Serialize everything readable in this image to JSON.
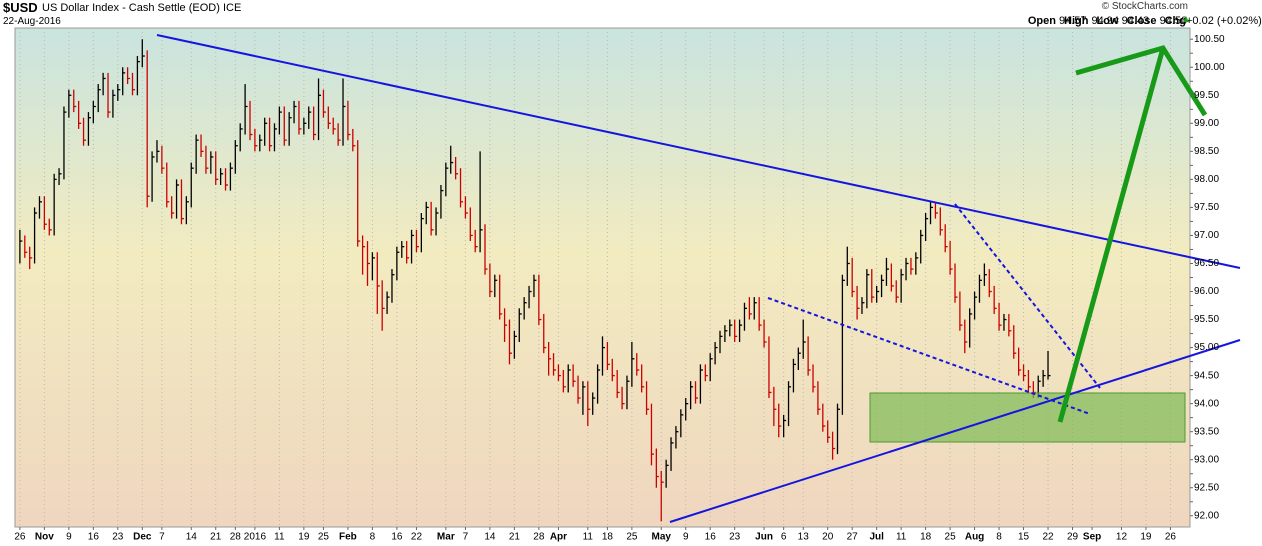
{
  "header": {
    "symbol": "$USD",
    "name": "US Dollar Index - Cash Settle (EOD)",
    "exchange": "ICE",
    "date": "22-Aug-2016",
    "copyright": "© StockCharts.com",
    "quote": [
      {
        "label": "Open",
        "value": "94.57"
      },
      {
        "label": "High",
        "value": "94.94"
      },
      {
        "label": "Low",
        "value": "94.43"
      },
      {
        "label": "Close",
        "value": "94.50"
      },
      {
        "label": "Chg",
        "value": "+0.02 (+0.02%)"
      }
    ]
  },
  "chart_data": {
    "type": "ohlc",
    "up_color": "#000000",
    "down_color": "#cc0000",
    "grid": true,
    "xlim": [
      -1,
      239
    ],
    "ylim": [
      91.8,
      100.7
    ],
    "xticks": [
      {
        "value": 0,
        "label": "26"
      },
      {
        "value": 5,
        "label": "Nov"
      },
      {
        "value": 10,
        "label": "9"
      },
      {
        "value": 15,
        "label": "16"
      },
      {
        "value": 20,
        "label": "23"
      },
      {
        "value": 25,
        "label": "Dec"
      },
      {
        "value": 29,
        "label": "7"
      },
      {
        "value": 35,
        "label": "14"
      },
      {
        "value": 40,
        "label": "21"
      },
      {
        "value": 44,
        "label": "28"
      },
      {
        "value": 48,
        "label": "2016"
      },
      {
        "value": 53,
        "label": "11"
      },
      {
        "value": 58,
        "label": "19"
      },
      {
        "value": 62,
        "label": "25"
      },
      {
        "value": 67,
        "label": "Feb"
      },
      {
        "value": 72,
        "label": "8"
      },
      {
        "value": 77,
        "label": "16"
      },
      {
        "value": 81,
        "label": "22"
      },
      {
        "value": 87,
        "label": "Mar"
      },
      {
        "value": 91,
        "label": "7"
      },
      {
        "value": 96,
        "label": "14"
      },
      {
        "value": 101,
        "label": "21"
      },
      {
        "value": 106,
        "label": "28"
      },
      {
        "value": 110,
        "label": "Apr"
      },
      {
        "value": 116,
        "label": "11"
      },
      {
        "value": 120,
        "label": "18"
      },
      {
        "value": 125,
        "label": "25"
      },
      {
        "value": 131,
        "label": "May"
      },
      {
        "value": 136,
        "label": "9"
      },
      {
        "value": 141,
        "label": "16"
      },
      {
        "value": 146,
        "label": "23"
      },
      {
        "value": 152,
        "label": "Jun"
      },
      {
        "value": 156,
        "label": "6"
      },
      {
        "value": 160,
        "label": "13"
      },
      {
        "value": 165,
        "label": "20"
      },
      {
        "value": 170,
        "label": "27"
      },
      {
        "value": 175,
        "label": "Jul"
      },
      {
        "value": 180,
        "label": "11"
      },
      {
        "value": 185,
        "label": "18"
      },
      {
        "value": 190,
        "label": "25"
      },
      {
        "value": 195,
        "label": "Aug"
      },
      {
        "value": 200,
        "label": "8"
      },
      {
        "value": 205,
        "label": "15"
      },
      {
        "value": 210,
        "label": "22"
      },
      {
        "value": 215,
        "label": "29"
      },
      {
        "value": 219,
        "label": "Sep"
      },
      {
        "value": 225,
        "label": "12"
      },
      {
        "value": 230,
        "label": "19"
      },
      {
        "value": 235,
        "label": "26"
      }
    ],
    "yticks": [
      {
        "value": 92,
        "label": "92.00"
      },
      92.25,
      {
        "value": 92.5,
        "label": "92.50"
      },
      92.75,
      {
        "value": 93,
        "label": "93.00"
      },
      93.25,
      {
        "value": 93.5,
        "label": "93.50"
      },
      93.75,
      {
        "value": 94,
        "label": "94.00"
      },
      94.25,
      {
        "value": 94.5,
        "label": "94.50"
      },
      94.75,
      {
        "value": 95,
        "label": "95.00"
      },
      95.25,
      {
        "value": 95.5,
        "label": "95.50"
      },
      95.75,
      {
        "value": 96,
        "label": "96.00"
      },
      96.25,
      {
        "value": 96.5,
        "label": "96.50"
      },
      96.75,
      {
        "value": 97,
        "label": "97.00"
      },
      97.25,
      {
        "value": 97.5,
        "label": "97.50"
      },
      97.75,
      {
        "value": 98,
        "label": "98.00"
      },
      98.25,
      {
        "value": 98.5,
        "label": "98.50"
      },
      98.75,
      {
        "value": 99,
        "label": "99.00"
      },
      99.25,
      {
        "value": 99.5,
        "label": "99.50"
      },
      99.75,
      {
        "value": 100,
        "label": "100.00"
      },
      100.25,
      {
        "value": 100.5,
        "label": "100.50"
      }
    ],
    "high": [
      97.1,
      97.0,
      96.8,
      97.5,
      97.7,
      97.7,
      97.3,
      98.1,
      98.2,
      99.3,
      99.6,
      99.6,
      99.4,
      99.1,
      99.2,
      99.4,
      99.7,
      99.9,
      99.9,
      99.6,
      99.7,
      100.0,
      100.0,
      99.9,
      100.2,
      100.5,
      100.3,
      98.5,
      98.7,
      98.6,
      98.3,
      97.7,
      98.0,
      98.0,
      97.7,
      98.3,
      98.8,
      98.8,
      98.6,
      98.5,
      98.5,
      98.2,
      98.2,
      98.3,
      98.7,
      99.0,
      99.7,
      99.4,
      98.9,
      98.8,
      99.1,
      99.1,
      99.0,
      99.3,
      99.3,
      99.2,
      99.4,
      99.4,
      99.1,
      99.3,
      99.3,
      99.8,
      99.6,
      99.3,
      99.1,
      99.0,
      99.8,
      99.4,
      98.9,
      98.7,
      97.0,
      96.9,
      96.7,
      96.7,
      96.2,
      96.0,
      96.4,
      96.8,
      96.9,
      96.9,
      97.1,
      97.1,
      97.4,
      97.6,
      97.6,
      97.5,
      97.9,
      98.3,
      98.6,
      98.4,
      98.2,
      97.7,
      97.5,
      97.1,
      98.5,
      97.2,
      96.5,
      96.3,
      96.3,
      95.7,
      95.5,
      95.3,
      95.7,
      95.9,
      96.1,
      96.3,
      96.3,
      95.6,
      95.1,
      94.9,
      94.7,
      94.6,
      94.7,
      94.7,
      94.5,
      94.4,
      94.4,
      94.2,
      94.7,
      95.2,
      95.1,
      94.8,
      94.6,
      94.3,
      94.5,
      95.1,
      94.9,
      94.7,
      94.4,
      94.0,
      93.2,
      92.8,
      93.0,
      93.4,
      93.6,
      93.9,
      94.1,
      94.4,
      94.4,
      94.7,
      94.7,
      94.9,
      95.1,
      95.3,
      95.4,
      95.5,
      95.5,
      95.5,
      95.8,
      95.9,
      95.9,
      95.9,
      95.5,
      95.2,
      94.3,
      94.0,
      93.8,
      94.4,
      94.8,
      95.0,
      95.5,
      95.2,
      94.7,
      94.4,
      94.0,
      93.7,
      93.5,
      94.0,
      96.3,
      96.8,
      96.6,
      96.1,
      95.9,
      96.4,
      96.4,
      96.1,
      96.3,
      96.6,
      96.5,
      96.2,
      96.4,
      96.6,
      96.6,
      96.7,
      97.1,
      97.4,
      97.6,
      97.6,
      97.5,
      97.2,
      96.9,
      96.5,
      96.0,
      95.5,
      95.7,
      96.0,
      96.3,
      96.5,
      96.4,
      96.1,
      95.8,
      95.6,
      95.6,
      95.4,
      95.0,
      94.7,
      94.6,
      94.4,
      94.5,
      94.6,
      94.94
    ],
    "low": [
      96.5,
      96.6,
      96.4,
      96.5,
      97.3,
      97.1,
      97.0,
      97.0,
      97.9,
      98.0,
      99.1,
      99.2,
      98.9,
      98.6,
      98.6,
      99.0,
      99.2,
      99.5,
      99.1,
      99.1,
      99.4,
      99.5,
      99.7,
      99.5,
      99.5,
      100.0,
      97.5,
      97.6,
      98.3,
      98.1,
      97.5,
      97.3,
      97.3,
      97.2,
      97.2,
      97.5,
      98.1,
      98.4,
      98.1,
      98.1,
      97.9,
      97.9,
      97.8,
      97.8,
      98.1,
      98.5,
      98.8,
      98.7,
      98.5,
      98.5,
      98.6,
      98.5,
      98.5,
      98.8,
      98.6,
      98.6,
      99.0,
      98.8,
      98.8,
      98.9,
      98.7,
      98.7,
      99.1,
      98.9,
      98.8,
      98.6,
      98.6,
      98.7,
      98.5,
      96.8,
      96.3,
      96.1,
      96.2,
      95.6,
      95.3,
      95.6,
      95.8,
      96.2,
      96.6,
      96.5,
      96.5,
      96.7,
      96.7,
      97.2,
      97.0,
      97.0,
      97.3,
      97.7,
      98.1,
      98.0,
      97.5,
      97.3,
      96.9,
      96.7,
      96.7,
      96.3,
      95.9,
      95.9,
      95.5,
      95.1,
      94.7,
      94.8,
      95.1,
      95.5,
      95.7,
      95.9,
      95.4,
      94.9,
      94.5,
      94.5,
      94.4,
      94.2,
      94.2,
      94.3,
      94.0,
      93.8,
      93.6,
      93.8,
      94.0,
      94.5,
      94.6,
      94.4,
      94.1,
      93.9,
      93.9,
      94.3,
      94.5,
      94.2,
      93.8,
      92.9,
      92.5,
      91.9,
      92.5,
      92.8,
      93.2,
      93.4,
      93.7,
      93.9,
      94.0,
      94.0,
      94.4,
      94.4,
      94.7,
      94.9,
      95.1,
      95.2,
      95.1,
      95.1,
      95.3,
      95.5,
      95.5,
      95.3,
      95.0,
      94.1,
      93.6,
      93.4,
      93.4,
      93.6,
      94.2,
      94.6,
      94.8,
      94.5,
      94.2,
      93.8,
      93.5,
      93.3,
      93.0,
      93.1,
      93.8,
      96.1,
      95.9,
      95.5,
      95.6,
      95.7,
      95.8,
      95.8,
      95.9,
      96.1,
      96.0,
      95.8,
      95.8,
      96.2,
      96.3,
      96.3,
      96.5,
      96.9,
      97.2,
      97.3,
      97.0,
      96.7,
      96.3,
      95.8,
      95.3,
      94.9,
      95.0,
      95.5,
      95.8,
      96.1,
      95.9,
      95.6,
      95.3,
      95.3,
      95.2,
      94.8,
      94.5,
      94.4,
      94.2,
      94.1,
      94.1,
      94.3,
      94.43
    ],
    "close": [
      96.9,
      96.7,
      96.6,
      97.4,
      97.6,
      97.2,
      97.1,
      98.0,
      98.1,
      99.2,
      99.5,
      99.3,
      99.0,
      98.7,
      99.1,
      99.3,
      99.6,
      99.8,
      99.2,
      99.5,
      99.6,
      99.9,
      99.8,
      99.6,
      100.1,
      100.2,
      97.7,
      98.4,
      98.5,
      98.2,
      97.6,
      97.4,
      97.9,
      97.3,
      97.6,
      98.2,
      98.7,
      98.5,
      98.2,
      98.4,
      98.0,
      98.1,
      97.9,
      98.2,
      98.6,
      98.9,
      99.3,
      98.8,
      98.6,
      98.7,
      99.0,
      98.6,
      98.9,
      99.2,
      98.7,
      99.1,
      99.3,
      98.9,
      99.0,
      99.2,
      98.8,
      99.5,
      99.2,
      99.0,
      98.9,
      98.7,
      99.3,
      98.8,
      98.6,
      96.9,
      96.8,
      96.5,
      96.6,
      96.1,
      95.7,
      95.9,
      96.3,
      96.7,
      96.8,
      96.6,
      97.0,
      96.8,
      97.3,
      97.5,
      97.1,
      97.4,
      97.8,
      98.2,
      98.3,
      98.1,
      97.6,
      97.4,
      97.0,
      96.8,
      97.1,
      96.4,
      96.0,
      96.2,
      95.6,
      95.4,
      94.9,
      95.2,
      95.6,
      95.8,
      96.0,
      96.2,
      95.5,
      95.0,
      94.8,
      94.6,
      94.5,
      94.3,
      94.6,
      94.4,
      94.1,
      94.3,
      93.9,
      94.1,
      94.6,
      95.0,
      94.7,
      94.5,
      94.2,
      94.0,
      94.4,
      94.8,
      94.6,
      94.3,
      93.9,
      93.1,
      92.7,
      92.6,
      92.9,
      93.3,
      93.5,
      93.8,
      94.0,
      94.3,
      94.1,
      94.6,
      94.5,
      94.8,
      95.0,
      95.2,
      95.3,
      95.4,
      95.2,
      95.4,
      95.7,
      95.6,
      95.8,
      95.4,
      95.1,
      94.2,
      93.9,
      93.6,
      93.7,
      94.3,
      94.7,
      94.9,
      95.1,
      94.6,
      94.3,
      93.9,
      93.6,
      93.4,
      93.2,
      93.9,
      96.2,
      96.5,
      96.0,
      95.7,
      95.8,
      96.3,
      95.9,
      96.0,
      96.2,
      96.4,
      96.1,
      95.9,
      96.3,
      96.5,
      96.4,
      96.6,
      97.0,
      97.3,
      97.5,
      97.4,
      97.1,
      96.8,
      96.4,
      95.9,
      95.4,
      95.1,
      95.6,
      95.9,
      96.2,
      96.3,
      96.0,
      95.7,
      95.4,
      95.5,
      95.3,
      94.9,
      94.6,
      94.5,
      94.3,
      94.2,
      94.4,
      94.5,
      94.5
    ]
  }
}
